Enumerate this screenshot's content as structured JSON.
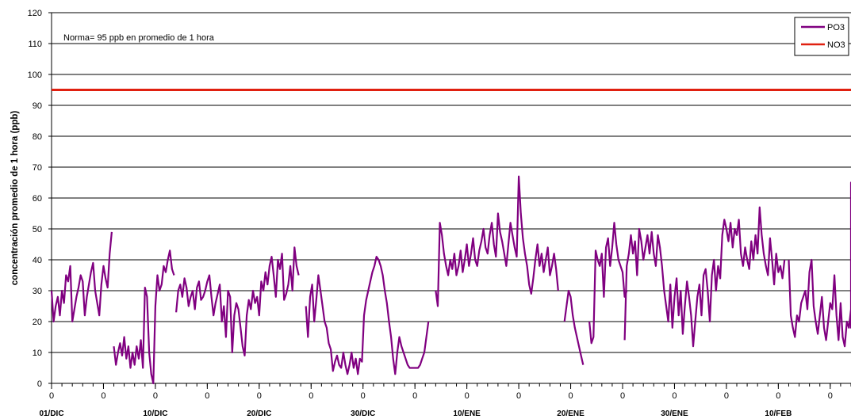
{
  "chart_data": {
    "type": "line",
    "title": "",
    "ylabel": "concentración promedio de 1 hora (ppb)",
    "xlabel": "",
    "ylim": [
      0,
      120
    ],
    "yticks": [
      0,
      10,
      20,
      30,
      40,
      50,
      60,
      70,
      80,
      90,
      100,
      110,
      120
    ],
    "grid": "horizontal",
    "legend_position": "top-right",
    "annotation": "Norma= 95 ppb en promedio de 1 hora",
    "x_domain_days": [
      0,
      77
    ],
    "x_zero_ticks": [
      "0",
      "0",
      "0",
      "0",
      "0",
      "0",
      "0",
      "0",
      "0",
      "0",
      "0",
      "0",
      "0",
      "0",
      "0",
      "0"
    ],
    "x_date_labels": [
      "01/DIC",
      "10/DIC",
      "20/DIC",
      "30/DIC",
      "10/ENE",
      "20/ENE",
      "30/ENE",
      "10/FEB"
    ],
    "series": [
      {
        "name": "PO3",
        "color": "#800080",
        "segments": [
          {
            "x0": 0,
            "step": 0.2,
            "y": [
              30,
              20,
              25,
              28,
              22,
              30,
              26,
              35,
              33,
              38,
              20,
              24,
              28,
              31,
              35,
              33,
              22,
              28,
              32,
              36,
              39,
              30,
              26,
              22,
              32,
              38,
              34,
              31,
              42,
              49
            ]
          },
          {
            "x0": 6,
            "step": 0.2,
            "y": [
              12,
              6,
              10,
              13,
              9,
              15,
              8,
              12,
              5,
              10,
              6,
              12,
              8,
              14,
              5,
              31,
              28,
              10,
              3,
              0,
              25,
              35,
              30,
              32,
              38,
              36,
              40,
              43,
              37,
              35
            ]
          },
          {
            "x0": 12,
            "step": 0.2,
            "y": [
              23,
              30,
              32,
              28,
              34,
              31,
              25,
              28,
              30,
              24,
              31,
              33,
              27,
              28,
              30,
              33,
              35,
              28,
              22,
              26,
              29,
              32,
              20,
              25,
              15,
              30,
              28,
              10,
              22,
              26,
              24,
              18,
              12,
              9,
              22,
              27,
              24,
              30,
              26,
              28,
              22,
              33,
              30,
              36,
              32,
              38,
              41,
              35,
              28,
              40,
              37,
              42,
              27,
              29,
              32,
              38,
              30,
              44,
              38,
              35
            ]
          },
          {
            "x0": 24.5,
            "step": 0.2,
            "y": [
              25,
              15,
              28,
              32,
              20,
              27,
              35,
              30,
              25,
              20,
              18,
              13,
              11,
              4,
              7,
              9,
              6,
              5,
              10,
              6,
              3,
              6,
              10,
              5,
              8,
              3,
              8,
              7,
              22,
              27,
              30,
              33,
              36,
              38,
              41,
              40,
              38,
              35,
              30,
              26,
              20,
              15,
              8,
              3,
              10,
              15,
              12,
              10,
              8,
              6,
              5,
              5,
              5,
              5,
              5,
              6,
              8,
              10,
              15,
              20
            ]
          },
          {
            "x0": 37,
            "step": 0.2,
            "y": [
              30,
              25,
              52,
              48,
              42,
              38,
              35,
              40,
              37,
              42,
              35,
              38,
              43,
              36,
              40,
              45,
              38,
              42,
              47,
              40,
              38,
              43,
              46,
              50,
              44,
              42,
              48,
              52,
              45,
              41,
              55,
              49,
              46,
              42,
              38,
              45,
              52,
              48,
              44,
              41,
              67,
              55,
              47,
              42,
              38,
              32,
              29,
              34,
              40,
              45,
              38,
              42,
              36,
              40,
              44,
              35,
              38,
              42,
              37,
              30
            ]
          },
          {
            "x0": 49.4,
            "step": 0.2,
            "y": [
              20,
              25,
              30,
              28,
              22,
              18,
              15,
              12,
              9,
              6
            ]
          },
          {
            "x0": 51.8,
            "step": 0.2,
            "y": [
              20,
              13,
              15,
              43,
              40,
              38,
              42,
              28,
              44,
              47,
              38,
              44,
              52,
              45,
              40,
              38,
              36,
              28,
              30
            ]
          },
          {
            "x0": 55.2,
            "step": 0.2,
            "y": [
              14,
              38,
              42,
              48,
              42,
              46,
              35,
              50,
              46,
              40,
              44,
              48,
              42,
              49,
              42,
              38,
              48,
              44,
              38,
              30,
              25,
              20,
              32,
              18,
              28,
              34,
              22,
              30,
              16,
              25,
              33,
              28,
              22,
              12,
              20,
              28,
              32,
              22,
              35,
              37,
              30,
              20,
              35,
              40,
              30,
              38,
              34,
              48,
              53,
              50,
              46,
              52,
              44,
              50,
              48,
              53,
              42,
              38,
              44,
              40,
              37,
              46,
              40,
              48,
              42,
              57,
              48,
              42,
              38,
              35,
              47,
              40,
              32,
              42,
              36,
              38,
              34,
              40
            ]
          },
          {
            "x0": 71.0,
            "step": 0.2,
            "y": [
              40,
              22,
              18,
              15,
              22,
              20,
              26,
              28,
              30,
              24,
              36,
              40,
              25,
              20,
              16,
              22,
              28,
              18,
              14,
              20,
              26,
              24,
              35,
              22,
              14,
              26,
              15,
              12,
              20,
              18,
              24,
              22,
              18,
              20,
              30,
              35,
              38,
              32,
              40,
              65,
              52,
              46,
              44,
              40
            ]
          }
        ]
      },
      {
        "name": "NO3",
        "color": "#e02010",
        "constant": 95
      }
    ]
  }
}
